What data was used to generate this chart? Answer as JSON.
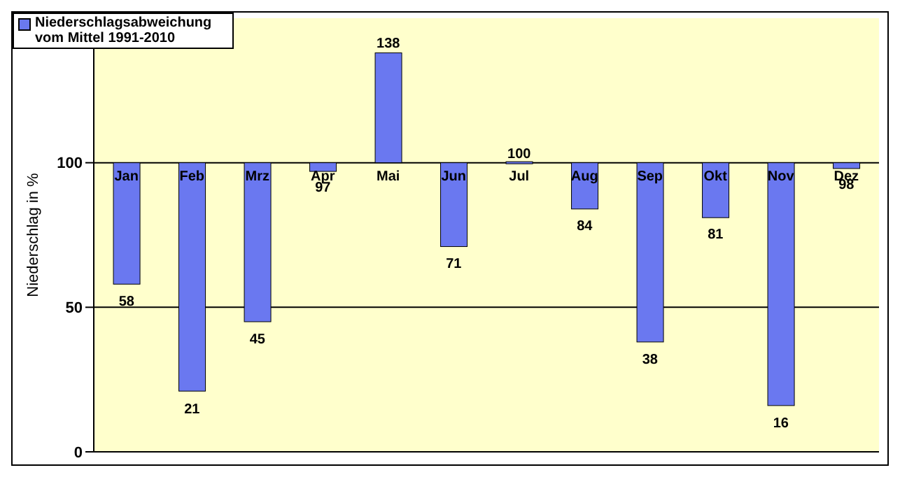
{
  "chart_data": {
    "type": "bar",
    "ylabel": "Niederschlag in %",
    "categories": [
      "Jan",
      "Feb",
      "Mrz",
      "Apr",
      "Mai",
      "Jun",
      "Jul",
      "Aug",
      "Sep",
      "Okt",
      "Nov",
      "Dez"
    ],
    "series": [
      {
        "name": "Niederschlagsabweichung vom Mittel 1991-2010",
        "color": "#6a78f0",
        "values": [
          -42,
          -79,
          -55,
          -3,
          38,
          -29,
          0,
          -16,
          -62,
          -19,
          -84,
          -2
        ],
        "base": [
          100,
          100,
          100,
          100,
          100,
          100,
          100,
          100,
          100,
          100,
          100,
          100
        ],
        "value_labels": [
          "58",
          "21",
          "45",
          "97",
          "138",
          "71",
          "100",
          "84",
          "38",
          "81",
          "16",
          "98"
        ]
      }
    ],
    "ylim": [
      0,
      150
    ],
    "yticks": [
      0,
      50,
      100
    ],
    "grid": "y",
    "legend": "top left"
  }
}
